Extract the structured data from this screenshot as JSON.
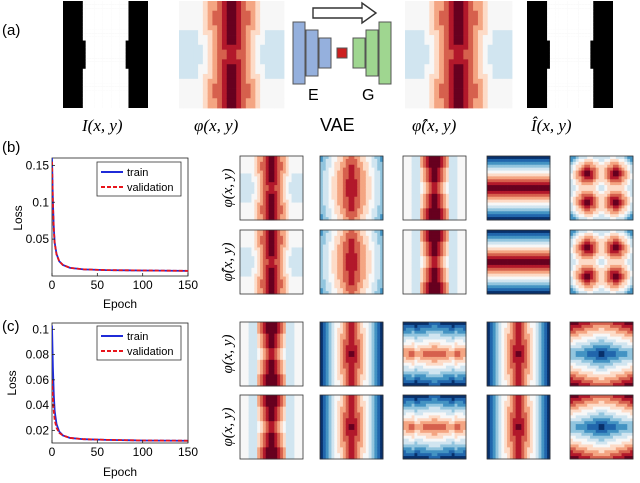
{
  "panel_labels": {
    "a": "(a)",
    "b": "(b)",
    "c": "(c)"
  },
  "row_a": {
    "labels": {
      "I": "I(x, y)",
      "phi": "φ(x, y)",
      "vae": "VAE",
      "phi_hat": "φ̂(x, y)",
      "I_hat": "Î(x, y)",
      "encoder": "E",
      "generator": "G"
    }
  },
  "colors": {
    "encoder_blue": "#95b0dd",
    "latent_red": "#cc1f1f",
    "generator_green": "#9fd690",
    "series_train": "#1f2bd8",
    "series_validation": "#e8141b",
    "field_palette": [
      "#08306b",
      "#2166ac",
      "#4393c3",
      "#92c5de",
      "#d1e5f0",
      "#f7f7f7",
      "#fddbc7",
      "#f4a582",
      "#d6604d",
      "#b2182b",
      "#67001f"
    ]
  },
  "row_labels": {
    "b_top": "φ(x, y)",
    "b_bottom": "φ̂(x, y)",
    "c_top": "φ(x, y)",
    "c_bottom": "φ(x, y)"
  },
  "chart_data": [
    {
      "type": "line",
      "panel": "b",
      "xlabel": "Epoch",
      "ylabel": "Loss",
      "xlim": [
        0,
        150
      ],
      "ylim": [
        0,
        0.16
      ],
      "xticks": [
        0,
        50,
        100,
        150
      ],
      "yticks": [
        0.05,
        0.1,
        0.15
      ],
      "ytick_labels": [
        "0.05",
        "0.1",
        "0.15"
      ],
      "legend": "top-right",
      "series": [
        {
          "name": "train",
          "x": [
            0,
            1,
            2,
            3,
            5,
            8,
            12,
            20,
            35,
            60,
            100,
            150
          ],
          "values": [
            0.16,
            0.1,
            0.065,
            0.045,
            0.03,
            0.02,
            0.015,
            0.011,
            0.009,
            0.008,
            0.0075,
            0.007
          ]
        },
        {
          "name": "validation",
          "x": [
            0,
            1,
            2,
            3,
            5,
            8,
            12,
            20,
            35,
            60,
            100,
            150
          ],
          "values": [
            0.155,
            0.098,
            0.062,
            0.044,
            0.029,
            0.02,
            0.015,
            0.011,
            0.009,
            0.008,
            0.0075,
            0.007
          ]
        }
      ]
    },
    {
      "type": "line",
      "panel": "c",
      "xlabel": "Epoch",
      "ylabel": "Loss",
      "xlim": [
        0,
        150
      ],
      "ylim": [
        0.01,
        0.105
      ],
      "xticks": [
        0,
        50,
        100,
        150
      ],
      "yticks": [
        0.02,
        0.04,
        0.06,
        0.08,
        0.1
      ],
      "ytick_labels": [
        "0.02",
        "0.04",
        "0.06",
        "0.08",
        "0.1"
      ],
      "legend": "top-right",
      "series": [
        {
          "name": "train",
          "x": [
            0,
            1,
            2,
            3,
            5,
            8,
            12,
            20,
            35,
            60,
            100,
            150
          ],
          "values": [
            0.103,
            0.07,
            0.048,
            0.035,
            0.025,
            0.019,
            0.016,
            0.014,
            0.013,
            0.0125,
            0.012,
            0.0118
          ]
        },
        {
          "name": "validation",
          "x": [
            0,
            1,
            2,
            3,
            5,
            8,
            12,
            20,
            35,
            60,
            100,
            150
          ],
          "values": [
            0.06,
            0.045,
            0.035,
            0.028,
            0.022,
            0.018,
            0.016,
            0.014,
            0.013,
            0.0125,
            0.012,
            0.0118
          ]
        }
      ]
    }
  ]
}
